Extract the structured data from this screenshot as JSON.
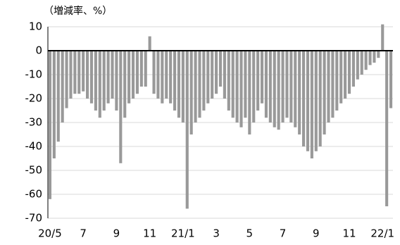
{
  "chart_data": {
    "type": "bar",
    "y_label": "（増減率、%）",
    "categories": [
      "20/5",
      null,
      null,
      null,
      null,
      null,
      null,
      null,
      "7",
      null,
      null,
      null,
      null,
      null,
      null,
      null,
      "9",
      null,
      null,
      null,
      null,
      null,
      null,
      null,
      "11",
      null,
      null,
      null,
      null,
      null,
      null,
      null,
      "21/1",
      null,
      null,
      null,
      null,
      null,
      null,
      null,
      "3",
      null,
      null,
      null,
      null,
      null,
      null,
      null,
      "5",
      null,
      null,
      null,
      null,
      null,
      null,
      null,
      "7",
      null,
      null,
      null,
      null,
      null,
      null,
      null,
      "9",
      null,
      null,
      null,
      null,
      null,
      null,
      null,
      "11",
      null,
      null,
      null,
      null,
      null,
      null,
      null,
      "22/1",
      null,
      null
    ],
    "values": [
      -62,
      -45,
      -38,
      -30,
      -24,
      -20,
      -18,
      -18,
      -17,
      -20,
      -22,
      -25,
      -28,
      -25,
      -22,
      -20,
      -25,
      -47,
      -28,
      -22,
      -20,
      -18,
      -15,
      -15,
      6,
      -18,
      -20,
      -22,
      -20,
      -22,
      -25,
      -28,
      -30,
      -66,
      -35,
      -30,
      -28,
      -25,
      -22,
      -20,
      -18,
      -15,
      -20,
      -25,
      -28,
      -30,
      -32,
      -28,
      -35,
      -30,
      -25,
      -22,
      -28,
      -30,
      -32,
      -33,
      -30,
      -28,
      -30,
      -32,
      -35,
      -40,
      -42,
      -45,
      -42,
      -40,
      -35,
      -30,
      -28,
      -25,
      -22,
      -20,
      -18,
      -15,
      -12,
      -10,
      -8,
      -6,
      -5,
      -3,
      11,
      -65,
      -24
    ],
    "color": "#999999",
    "ylim": [
      -70,
      10
    ],
    "yticks": [
      10,
      0,
      -10,
      -20,
      -30,
      -40,
      -50,
      -60,
      -70
    ],
    "grid": true
  }
}
